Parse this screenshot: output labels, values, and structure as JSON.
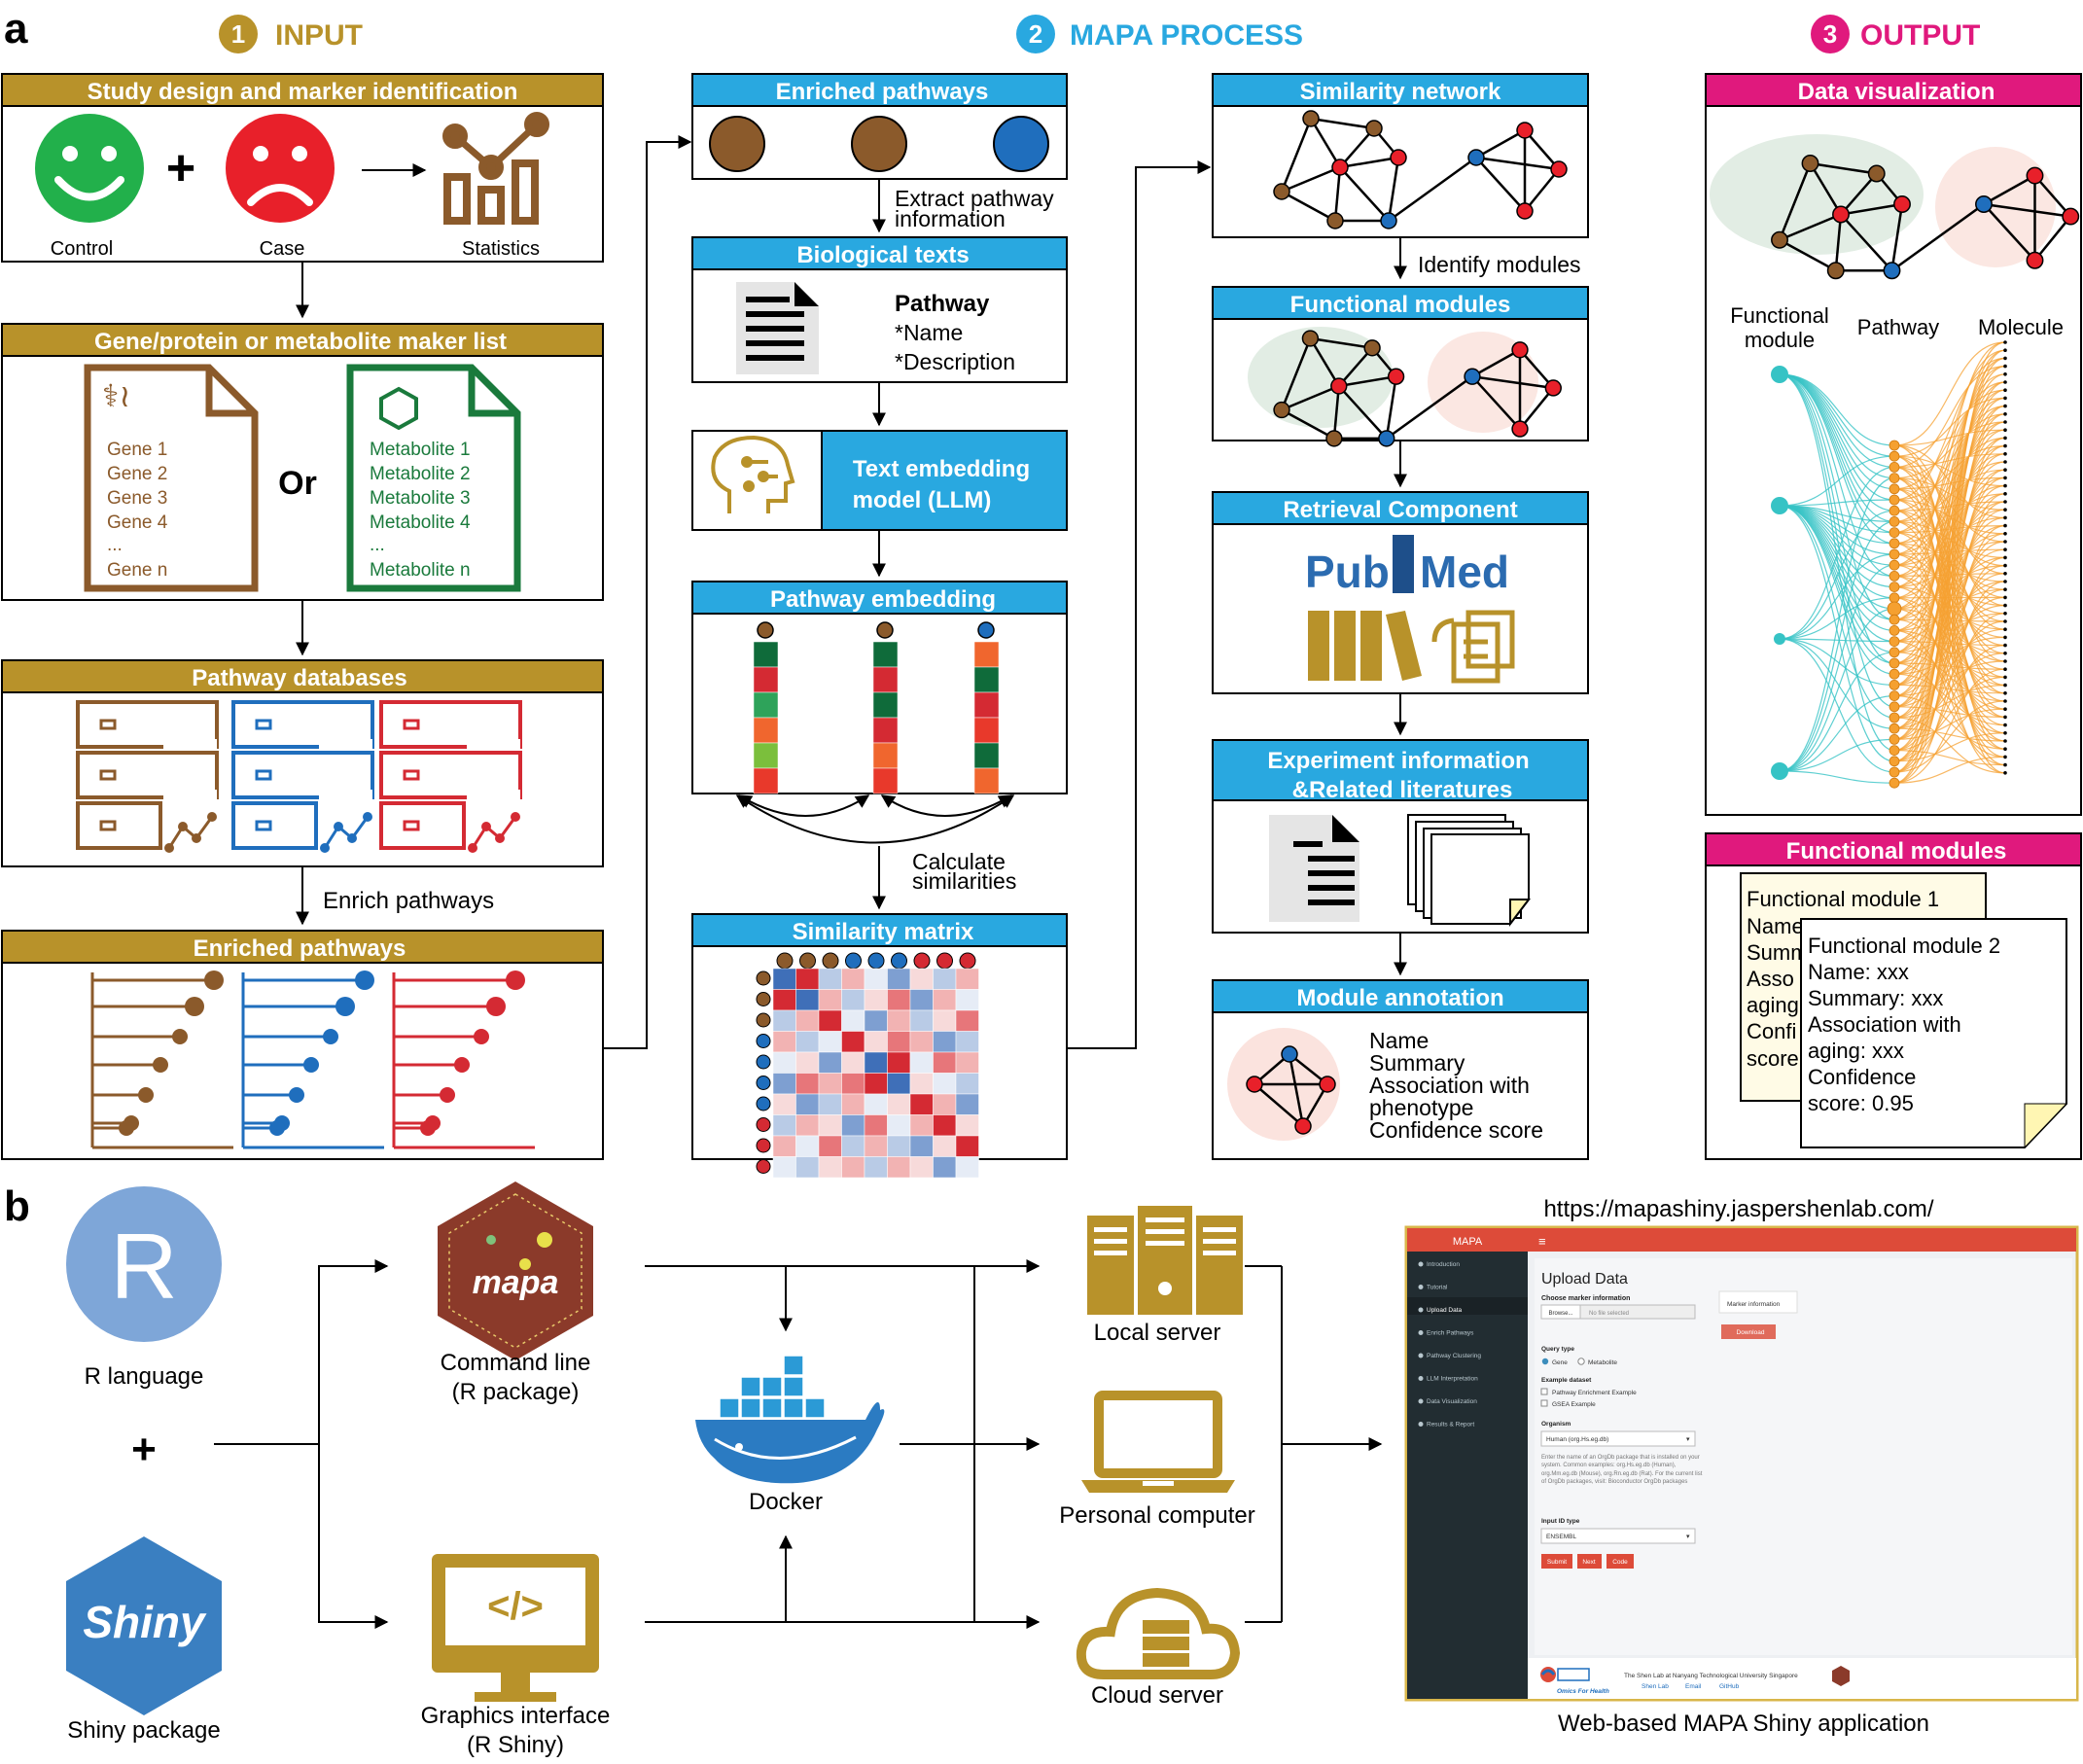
{
  "panel_a": {
    "letter": "a",
    "steps": [
      {
        "num": "1",
        "label": "INPUT",
        "color": "#b8922a"
      },
      {
        "num": "2",
        "label": "MAPA PROCESS",
        "color": "#29a8e0"
      },
      {
        "num": "3",
        "label": "OUTPUT",
        "color": "#e0197d"
      }
    ],
    "input": {
      "study_title": "Study design and marker identification",
      "control_label": "Control",
      "case_label": "Case",
      "statistics_label": "Statistics",
      "plus": "+",
      "marker_title": "Gene/protein or metabolite maker list",
      "genes": [
        "Gene 1",
        "Gene 2",
        "Gene 3",
        "Gene 4",
        "...",
        "Gene n"
      ],
      "or_label": "Or",
      "metabolites": [
        "Metabolite 1",
        "Metabolite 2",
        "Metabolite 3",
        "Metabolite 4",
        "...",
        "Metabolite n"
      ],
      "db_title": "Pathway databases",
      "enrich_label": "Enrich pathways",
      "enriched_title": "Enriched pathways"
    },
    "process": {
      "enriched_title": "Enriched pathways",
      "extract_label_1": "Extract pathway",
      "extract_label_2": "information",
      "bio_title": "Biological texts",
      "pathway_label": "Pathway",
      "name_label": "*Name",
      "desc_label": "*Description",
      "embed_model_1": "Text embedding",
      "embed_model_2": "model (LLM)",
      "embedding_title": "Pathway embedding",
      "calc_label_1": "Calculate",
      "calc_label_2": "similarities",
      "matrix_title": "Similarity matrix",
      "network_title": "Similarity network",
      "identify_label": "Identify modules",
      "modules_title": "Functional modules",
      "retrieval_title": "Retrieval Component",
      "pubmed_pub": "Pub",
      "pubmed_med": "Med",
      "exp_title_1": "Experiment information",
      "exp_title_2": "&Related literatures",
      "annot_title": "Module annotation",
      "annot_items": [
        "Name",
        "Summary",
        "Association with",
        "phenotype",
        "Confidence score"
      ]
    },
    "output": {
      "viz_title": "Data visualization",
      "col_module_1": "Functional",
      "col_module_2": "module",
      "col_pathway": "Pathway",
      "col_molecule": "Molecule",
      "modules_title": "Functional modules",
      "card1": [
        "Functional module 1",
        "Name",
        "Summ",
        "Asso",
        "aging",
        "Confi",
        "score"
      ],
      "card2": [
        "Functional module 2",
        "Name: xxx",
        "Summary: xxx",
        "Association with",
        "aging: xxx",
        "Confidence",
        "score: 0.95"
      ]
    }
  },
  "panel_b": {
    "letter": "b",
    "r_label": "R language",
    "r_glyph": "R",
    "plus": "+",
    "shiny_label": "Shiny package",
    "shiny_glyph": "Shiny",
    "mapa_glyph": "mapa",
    "cmd_label_1": "Command line",
    "cmd_label_2": "(R package)",
    "gui_label_1": "Graphics interface",
    "gui_label_2": "(R Shiny)",
    "docker_label": "Docker",
    "local_label": "Local server",
    "pc_label": "Personal computer",
    "cloud_label": "Cloud server",
    "url": "https://mapashiny.jaspershenlab.com/",
    "caption": "Web-based MAPA Shiny application",
    "app": {
      "brand": "MAPA",
      "menu_icon": "≡",
      "sidebar": [
        "Introduction",
        "Tutorial",
        "Upload Data",
        "Enrich Pathways",
        "Pathway Clustering",
        "LLM Interpretation",
        "Data Visualization",
        "Results & Report"
      ],
      "active_index": 2,
      "page_title": "Upload Data",
      "choose_label": "Choose marker information",
      "browse_label": "Browse...",
      "file_placeholder": "No file selected",
      "marker_tab": "Marker information",
      "download_label": "Download",
      "query_label": "Query type",
      "query_options": [
        "Gene",
        "Metabolite"
      ],
      "example_label": "Example dataset",
      "example_options": [
        "Pathway Enrichment Example",
        "GSEA Example"
      ],
      "organism_label": "Organism",
      "organism_value": "Human (org.Hs.eg.db)",
      "help_text": "Enter the name of an OrgDb package that is installed on your system. Common examples: org.Hs.eg.db (Human), org.Mm.eg.db (Mouse), org.Rn.eg.db (Rat). For the current list of OrgDb packages, visit: Bioconductor OrgDb packages",
      "id_label": "Input ID type",
      "id_value": "ENSEMBL",
      "buttons": [
        "Submit",
        "Next",
        "Code"
      ],
      "footer_lab": "The Shen Lab at Nanyang Technological University Singapore",
      "footer_links": [
        "Shen Lab",
        "Email",
        "GitHub"
      ],
      "footer_tag": "Omics For Health"
    }
  }
}
